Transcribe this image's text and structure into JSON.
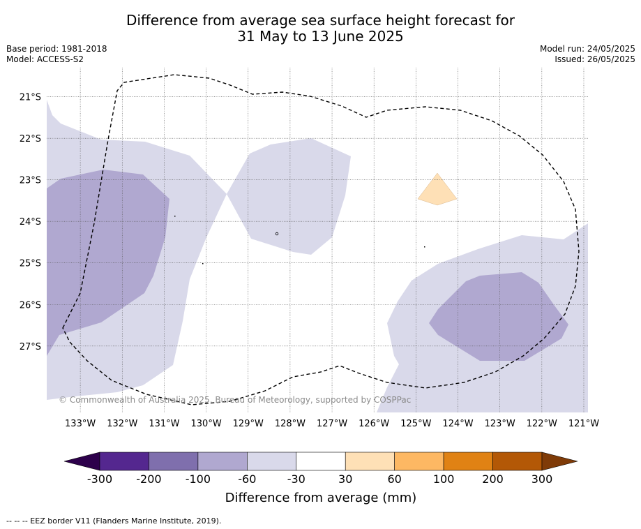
{
  "title_line1": "Difference from average sea surface height forecast for",
  "title_line2": "31 May to 13 June 2025",
  "base_period": "Base period: 1981-2018",
  "model": "Model: ACCESS-S2",
  "model_run": "Model run: 24/05/2025",
  "issued": "Issued: 26/05/2025",
  "copyright": "© Commonwealth of Australia 2025, Bureau of Meteorology, supported by COSPPac",
  "footer": "--  --  -- EEZ border V11 (Flanders Marine Institute, 2019).",
  "map": {
    "lon_labels": [
      "133°W",
      "132°W",
      "131°W",
      "130°W",
      "129°W",
      "128°W",
      "127°W",
      "126°W",
      "125°W",
      "124°W",
      "123°W",
      "122°W",
      "121°W"
    ],
    "lat_labels": [
      "21°S",
      "22°S",
      "23°S",
      "24°S",
      "25°S",
      "26°S",
      "27°S"
    ],
    "lon_range": [
      -133.8,
      -120.9
    ],
    "lat_range": [
      -28.6,
      -20.3
    ]
  },
  "colorbar": {
    "label": "Difference from average (mm)",
    "ticks": [
      "-300",
      "-200",
      "-100",
      "-60",
      "-30",
      "30",
      "60",
      "100",
      "200",
      "300"
    ],
    "colors": [
      "#54278f",
      "#7f6fad",
      "#b0a8d0",
      "#d9d9ea",
      "#ffffff",
      "#fee0b6",
      "#fdb863",
      "#e08214",
      "#b35806"
    ],
    "under_color": "#2d004b",
    "over_color": "#7f3b08"
  }
}
